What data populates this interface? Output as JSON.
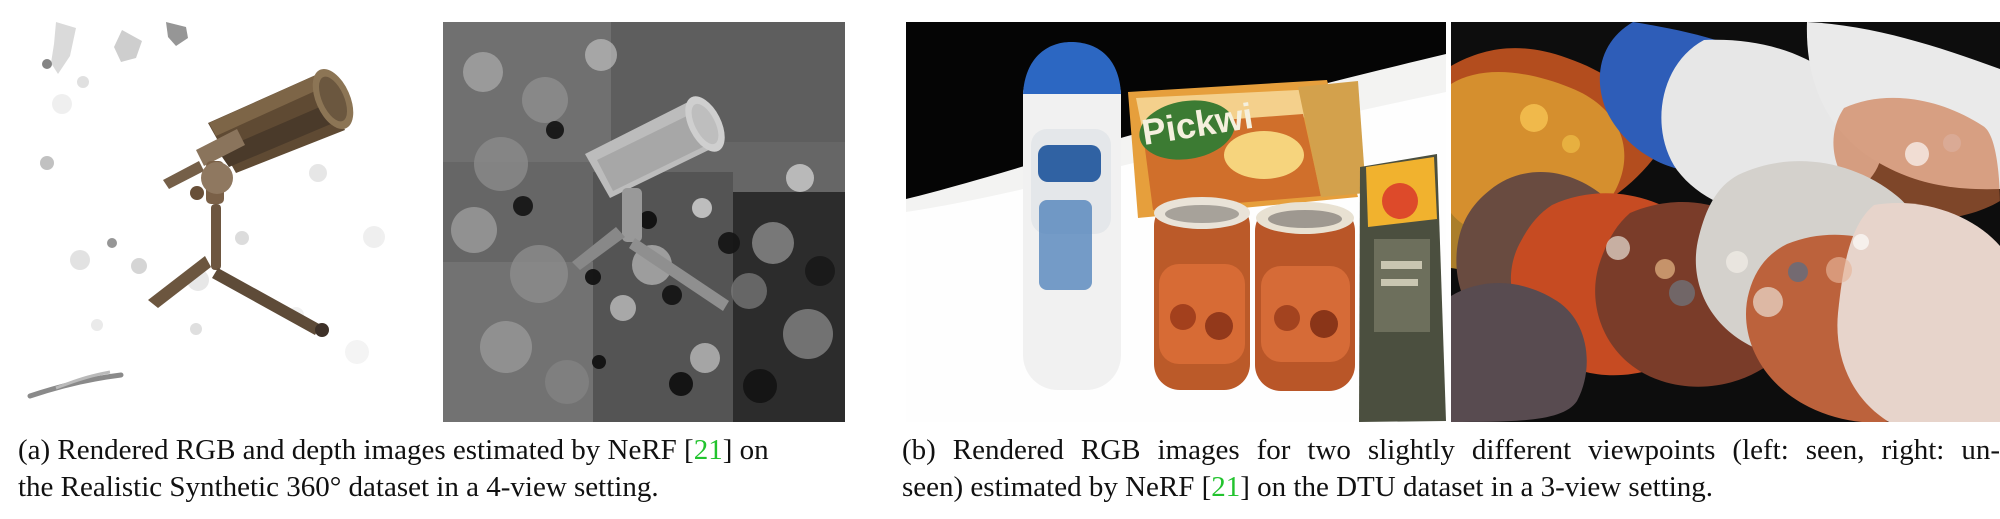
{
  "figure": {
    "panels": [
      {
        "id": "a",
        "caption_lines": [
          {
            "before": "(a) Rendered RGB and depth images estimated by NeRF [",
            "cite": "21",
            "after": "] on"
          },
          {
            "text": "the Realistic Synthetic 360° dataset in a 4-view setting."
          }
        ]
      },
      {
        "id": "b",
        "caption_lines": [
          {
            "text": "(b) Rendered RGB images for two slightly different viewpoints (left: seen, right: un-"
          },
          {
            "before": "seen) estimated by NeRF [",
            "cite": "21",
            "after": "] on the DTU dataset in a 3-view setting."
          }
        ]
      }
    ],
    "colors": {
      "citation": "#22c32e"
    }
  }
}
